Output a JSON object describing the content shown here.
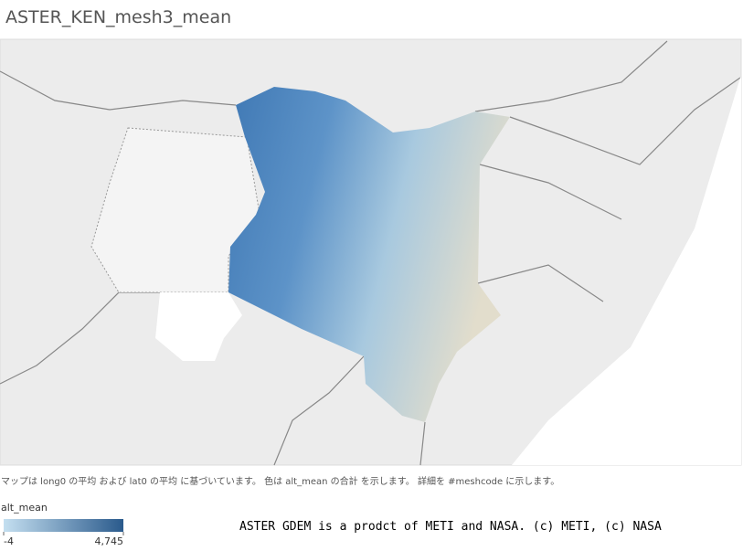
{
  "header": {
    "title": "ASTER_KEN_mesh3_mean"
  },
  "caption": "マップは long0 の平均 および lat0 の平均 に基づいています。 色は alt_mean の合計 を示します。 詳細を #meshcode に示します。",
  "legend": {
    "title": "alt_mean",
    "min": {
      "value": -4,
      "label": "-4"
    },
    "max": {
      "value": 4745,
      "label": "4,745"
    }
  },
  "attribution": "ASTER GDEM is a prodct of METI and NASA. (c) METI, (c) NASA"
}
